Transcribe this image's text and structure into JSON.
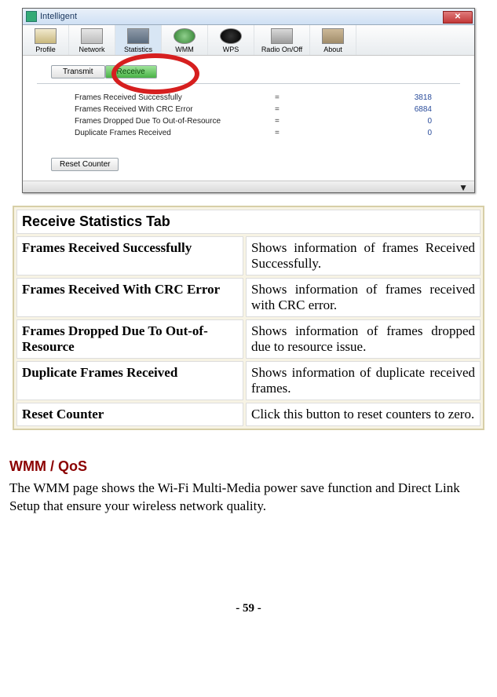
{
  "window": {
    "title": "Intelligent",
    "tools": [
      {
        "label": "Profile",
        "iconClass": "ic-profile"
      },
      {
        "label": "Network",
        "iconClass": "ic-network"
      },
      {
        "label": "Statistics",
        "iconClass": "ic-stats"
      },
      {
        "label": "WMM",
        "iconClass": "ic-wmm"
      },
      {
        "label": "WPS",
        "iconClass": "ic-wps"
      },
      {
        "label": "Radio On/Off",
        "iconClass": "ic-radio"
      },
      {
        "label": "About",
        "iconClass": "ic-about"
      }
    ],
    "tabs": {
      "transmit": "Transmit",
      "receive": "Receive"
    },
    "stats": [
      {
        "label": "Frames Received Successfully",
        "eq": "=",
        "value": "3818"
      },
      {
        "label": "Frames Received With CRC Error",
        "eq": "=",
        "value": "6884"
      },
      {
        "label": "Frames Dropped Due To Out-of-Resource",
        "eq": "=",
        "value": "0"
      },
      {
        "label": "Duplicate Frames Received",
        "eq": "=",
        "value": "0"
      }
    ],
    "reset": "Reset Counter",
    "colors": {
      "highlight_ring": "#d61f1f",
      "active_tab_bg": "#49b246"
    }
  },
  "doc": {
    "header": "Receive Statistics Tab",
    "rows": [
      {
        "l": "Frames Received Successfully",
        "r": "Shows information of frames Received Successfully."
      },
      {
        "l": "Frames Received With CRC Error",
        "r": "Shows information of frames received with CRC error."
      },
      {
        "l": "Frames Dropped Due To Out-of-Resource",
        "r": "Shows information of frames dropped due to resource issue."
      },
      {
        "l": "Duplicate Frames Received",
        "r": "Shows information of duplicate received frames."
      },
      {
        "l": "Reset Counter",
        "r": "Click this button to reset counters to zero."
      }
    ]
  },
  "section": {
    "heading": "WMM / QoS",
    "body": "The WMM page shows the Wi-Fi Multi-Media power save function and Direct Link Setup that ensure your wireless network quality."
  },
  "page_number": "- 59 -"
}
